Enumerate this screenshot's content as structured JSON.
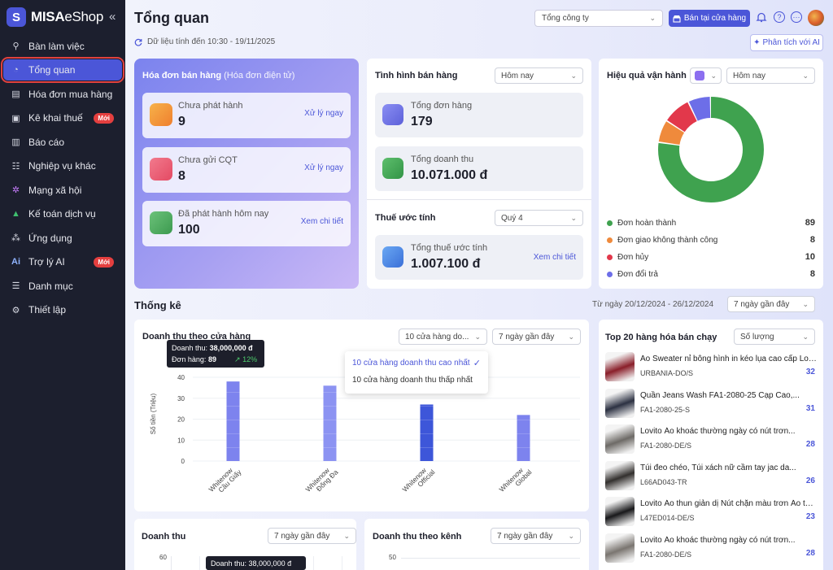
{
  "app": {
    "logo_brand": "MISA",
    "logo_product": "eShop",
    "collapse_icon": "«"
  },
  "sidebar": {
    "items": [
      {
        "label": "Bàn làm việc",
        "icon": "desk-icon"
      },
      {
        "label": "Tổng quan",
        "icon": "dashboard-icon",
        "active": true
      },
      {
        "label": "Hóa đơn mua hàng",
        "icon": "receipt-icon"
      },
      {
        "label": "Kê khai thuế",
        "icon": "tax-icon",
        "badge": "Mới"
      },
      {
        "label": "Báo cáo",
        "icon": "report-icon"
      },
      {
        "label": "Nghiệp vụ khác",
        "icon": "list-icon"
      },
      {
        "label": "Mạng xã hội",
        "icon": "social-icon"
      },
      {
        "label": "Kế toán dịch vụ",
        "icon": "accounting-icon"
      },
      {
        "label": "Ứng dụng",
        "icon": "apps-icon"
      },
      {
        "label": "Trợ lý AI",
        "icon": "ai-icon",
        "badge": "Mới"
      },
      {
        "label": "Danh mục",
        "icon": "catalog-icon"
      },
      {
        "label": "Thiết lập",
        "icon": "settings-icon"
      }
    ]
  },
  "header": {
    "title": "Tổng quan",
    "sync_text": "Dữ liệu tính đến 10:30 - 19/11/2025",
    "company_select": "Tổng công ty",
    "store_button": "Bán tại cửa hàng",
    "ai_button": "Phân tích với AI"
  },
  "invoice": {
    "title": "Hóa đơn bán hàng",
    "subtitle": "(Hóa đơn điện tử)",
    "items": [
      {
        "label": "Chưa phát hành",
        "value": "9",
        "link": "Xử lý ngay"
      },
      {
        "label": "Chưa gửi CQT",
        "value": "8",
        "link": "Xử lý ngay"
      },
      {
        "label": "Đã phát hành hôm nay",
        "value": "100",
        "link": "Xem chi tiết"
      }
    ]
  },
  "sales": {
    "title": "Tình hình bán hàng",
    "period": "Hôm nay",
    "orders_label": "Tổng đơn hàng",
    "orders_value": "179",
    "revenue_label": "Tổng doanh thu",
    "revenue_value": "10.071.000 đ"
  },
  "tax": {
    "title": "Thuế ước tính",
    "period": "Quý 4",
    "label": "Tổng thuế ước tính",
    "value": "1.007.100 đ",
    "link": "Xem chi tiết"
  },
  "ops": {
    "title": "Hiệu quả vận hành",
    "period": "Hôm nay",
    "legend": [
      {
        "label": "Đơn hoàn thành",
        "value": "89",
        "color": "#3fa24f"
      },
      {
        "label": "Đơn giao không thành công",
        "value": "8",
        "color": "#ef8a3c"
      },
      {
        "label": "Đơn hủy",
        "value": "10",
        "color": "#e2384b"
      },
      {
        "label": "Đơn đổi trả",
        "value": "8",
        "color": "#6d6ee8"
      }
    ]
  },
  "stats": {
    "title": "Thống kê",
    "date_range": "Từ ngày 20/12/2024 - 26/12/2024",
    "period": "7 ngày gần đây"
  },
  "store_chart": {
    "title": "Doanh thu theo cửa hàng",
    "store_filter": "10 cửa hàng do...",
    "period": "7 ngày gần đây",
    "ylabel": "Số tiền (Triệu)",
    "dropdown": {
      "opt1": "10 cửa hàng doanh thu cao nhất",
      "opt2": "10 cửa hàng doanh thu thấp nhất"
    },
    "tooltip": {
      "rev_label": "Doanh thu:",
      "rev_value": "38,000,000 đ",
      "orders_label": "Đơn hàng:",
      "orders_value": "89",
      "change": "12%"
    }
  },
  "chart_data": {
    "type": "bar",
    "categories": [
      "Whitenow Cầu Giấy",
      "Whitenow Đống Đa",
      "Whitenow Official",
      "Whitenow Global"
    ],
    "values": [
      38,
      36,
      27,
      22
    ],
    "ylabel": "Số tiền (Triệu)",
    "yticks": [
      0,
      10,
      20,
      30,
      40
    ],
    "ylim": [
      0,
      45
    ]
  },
  "top_products": {
    "title": "Top 20 hàng hóa bán chạy",
    "sort": "Số lượng",
    "items": [
      {
        "name": "Áo Sweater nỉ bông hình in kéo lụa cao cấp Loc...",
        "code": "URBANIA-DO/S",
        "qty": "32",
        "color": "#8a1f2a"
      },
      {
        "name": "Quần Jeans Wash FA1-2080-25 Cạp Cao,...",
        "code": "FA1-2080-25-S",
        "qty": "31",
        "color": "#2c3142"
      },
      {
        "name": "Lovito Áo khoác thường ngày có nút trơn...",
        "code": "FA1-2080-DE/S",
        "qty": "28",
        "color": "#6d6a66"
      },
      {
        "name": "Túi đeo chéo, Túi xách nữ cầm tay jac da...",
        "code": "L66AD043-TR",
        "qty": "26",
        "color": "#33302e"
      },
      {
        "name": "Lovito Áo thun giản dị Nút chặn màu trơn Áo thun t...",
        "code": "L47ED014-DE/S",
        "qty": "23",
        "color": "#18181a"
      },
      {
        "name": "Lovito Áo khoác thường ngày có nút trơn...",
        "code": "FA1-2080-DE/S",
        "qty": "28",
        "color": "#7a7570"
      }
    ]
  },
  "daily": {
    "title": "Doanh thu",
    "period": "7 ngày gần đây",
    "ytick": "60",
    "tooltip": "Doanh thu: 38,000,000 đ"
  },
  "channel": {
    "title": "Doanh thu theo kênh",
    "period": "7 ngày gần đây",
    "ytick": "50"
  }
}
